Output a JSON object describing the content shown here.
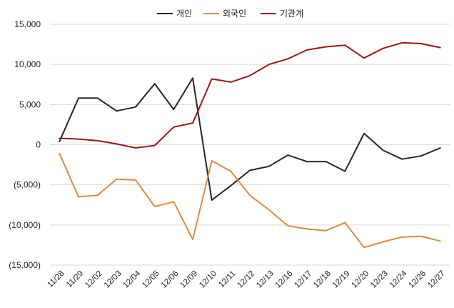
{
  "chart_data": {
    "type": "line",
    "title": "",
    "xlabel": "",
    "ylabel": "",
    "ylim": [
      -15000,
      15000
    ],
    "yticks": [
      15000,
      10000,
      5000,
      0,
      -5000,
      -10000,
      -15000
    ],
    "ytick_labels": [
      "15,000",
      "10,000",
      "5,000",
      "0",
      "(5,000)",
      "(10,000)",
      "(15,000)"
    ],
    "grid": "horizontal",
    "legend_position": "top-center",
    "categories": [
      "11/28",
      "11/29",
      "12/02",
      "12/03",
      "12/04",
      "12/05",
      "12/06",
      "12/09",
      "12/10",
      "12/11",
      "12/12",
      "12/13",
      "12/16",
      "12/17",
      "12/18",
      "12/19",
      "12/20",
      "12/23",
      "12/24",
      "12/26",
      "12/27"
    ],
    "series": [
      {
        "name": "개인",
        "color": "#1f2533",
        "values": [
          400,
          5800,
          5800,
          4200,
          4700,
          7600,
          4400,
          8300,
          -6900,
          -5100,
          -3200,
          -2700,
          -1300,
          -2100,
          -2100,
          -3300,
          1400,
          -700,
          -1800,
          -1400,
          -400
        ]
      },
      {
        "name": "외국인",
        "color": "#e08a3c",
        "values": [
          -1100,
          -6500,
          -6300,
          -4300,
          -4400,
          -7700,
          -7100,
          -11800,
          -2000,
          -3300,
          -6300,
          -8100,
          -10100,
          -10500,
          -10700,
          -9700,
          -12800,
          -12100,
          -11500,
          -11400,
          -12000
        ]
      },
      {
        "name": "기관계",
        "color": "#a31515",
        "values": [
          800,
          700,
          500,
          100,
          -400,
          -100,
          2200,
          2700,
          8200,
          7800,
          8600,
          10000,
          10700,
          11800,
          12200,
          12400,
          10800,
          12000,
          12700,
          12600,
          12100
        ]
      }
    ]
  }
}
